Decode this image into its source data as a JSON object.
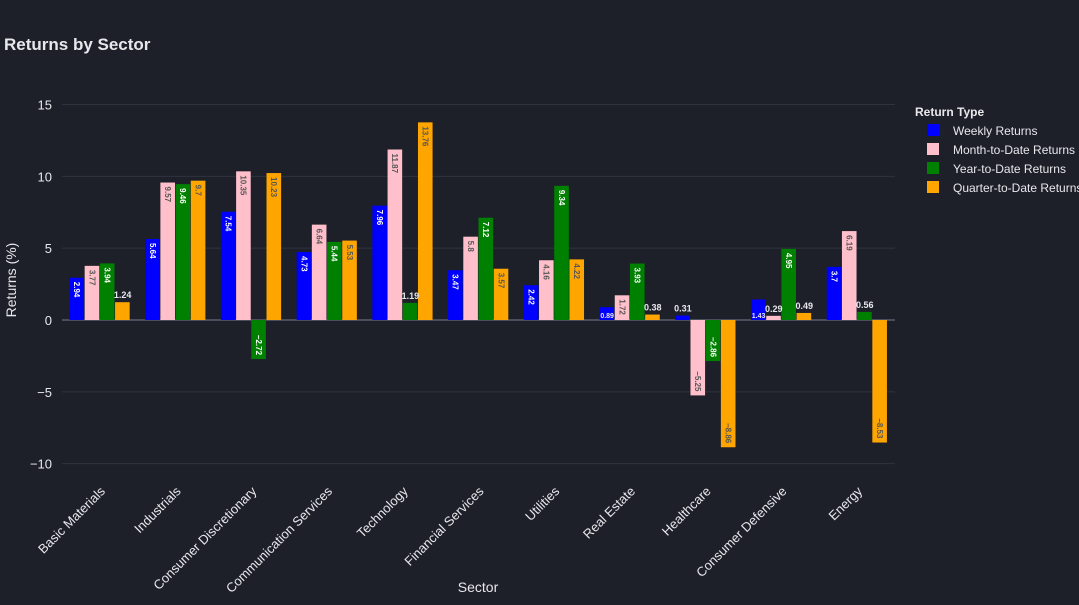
{
  "chart_data": {
    "type": "bar",
    "title": "Returns by Sector",
    "xlabel": "Sector",
    "ylabel": "Returns (%)",
    "ylim": [
      -11,
      16.5
    ],
    "yticks": [
      -10,
      -5,
      0,
      5,
      10,
      15
    ],
    "ytick_labels": [
      "−10",
      "−5",
      "0",
      "5",
      "10",
      "15"
    ],
    "grid": true,
    "legend_title": "Return Type",
    "legend_position": "top-right",
    "categories": [
      "Basic Materials",
      "Industrials",
      "Consumer Discretionary",
      "Communication Services",
      "Technology",
      "Financial Services",
      "Utilities",
      "Real Estate",
      "Healthcare",
      "Consumer Defensive",
      "Energy"
    ],
    "series": [
      {
        "name": "Weekly Returns",
        "color": "#0000ff",
        "label_color": "#ffffff",
        "values": [
          2.94,
          5.64,
          7.54,
          4.73,
          7.96,
          3.47,
          2.42,
          0.89,
          0.31,
          1.43,
          3.7
        ],
        "labels": [
          "2.94",
          "5.64",
          "7.54",
          "4.73",
          "7.96",
          "3.47",
          "2.42",
          "0.89",
          "0.31",
          "1.43",
          "3.7"
        ]
      },
      {
        "name": "Month-to-Date Returns",
        "color": "#ffc0cb",
        "label_color": "#555555",
        "values": [
          3.77,
          9.57,
          10.35,
          6.64,
          11.87,
          5.8,
          4.16,
          1.72,
          -5.25,
          0.29,
          6.19
        ],
        "labels": [
          "3.77",
          "9.57",
          "10.35",
          "6.64",
          "11.87",
          "5.8",
          "4.16",
          "1.72",
          "−5.25",
          "0.29",
          "6.19"
        ]
      },
      {
        "name": "Year-to-Date Returns",
        "color": "#008000",
        "label_color": "#ffffff",
        "values": [
          3.94,
          9.46,
          -2.72,
          5.44,
          1.19,
          7.12,
          9.34,
          3.93,
          -2.86,
          4.95,
          0.56
        ],
        "labels": [
          "3.94",
          "9.46",
          "−2.72",
          "5.44",
          "1.19",
          "7.12",
          "9.34",
          "3.93",
          "−2.86",
          "4.95",
          "0.56"
        ]
      },
      {
        "name": "Quarter-to-Date Returns",
        "color": "#ffa500",
        "label_color": "#555555",
        "values": [
          1.24,
          9.7,
          10.23,
          5.53,
          13.76,
          3.57,
          4.22,
          0.38,
          -8.86,
          0.49,
          -8.53
        ],
        "labels": [
          "1.24",
          "9.7",
          "10.23",
          "5.53",
          "13.76",
          "3.57",
          "4.22",
          "0.38",
          "−8.86",
          "0.49",
          "−8.53"
        ]
      }
    ]
  }
}
